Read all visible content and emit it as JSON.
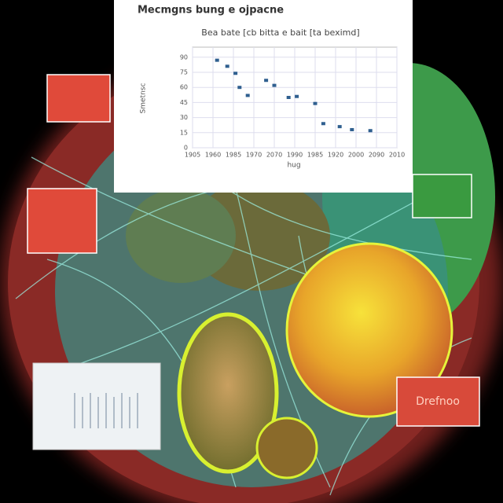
{
  "chart_data": {
    "type": "scatter",
    "title": "Mecmgns bung e ojpacne",
    "subtitle": "Bea bate [cb bitta e bait [ta beximd]",
    "x_label": "hug",
    "y_label": "Smetnsc",
    "x": [
      1.2,
      1.7,
      2.1,
      2.3,
      2.7,
      3.6,
      4.0,
      4.7,
      5.1,
      6.0,
      6.4,
      7.2,
      7.8,
      8.7
    ],
    "values": [
      87,
      81,
      74,
      60,
      52,
      67,
      62,
      50,
      51,
      44,
      24,
      21,
      18,
      17
    ],
    "color": "#2f5f8f",
    "xlim": [
      0,
      10
    ],
    "xticks": [
      {
        "value": 0,
        "label": "1905"
      },
      {
        "value": 1,
        "label": "1960"
      },
      {
        "value": 2,
        "label": "1985"
      },
      {
        "value": 3,
        "label": "1970"
      },
      {
        "value": 4,
        "label": "2070"
      },
      {
        "value": 5,
        "label": "1990"
      },
      {
        "value": 6,
        "label": "1985"
      },
      {
        "value": 7,
        "label": "1920"
      },
      {
        "value": 8,
        "label": "2000"
      },
      {
        "value": 9,
        "label": "2090"
      },
      {
        "value": 10,
        "label": "2010"
      }
    ],
    "ylim": [
      0,
      100
    ],
    "yticks": [
      0,
      15,
      30,
      45,
      60,
      75,
      90
    ],
    "grid": true,
    "badge": "Drefnoo"
  }
}
